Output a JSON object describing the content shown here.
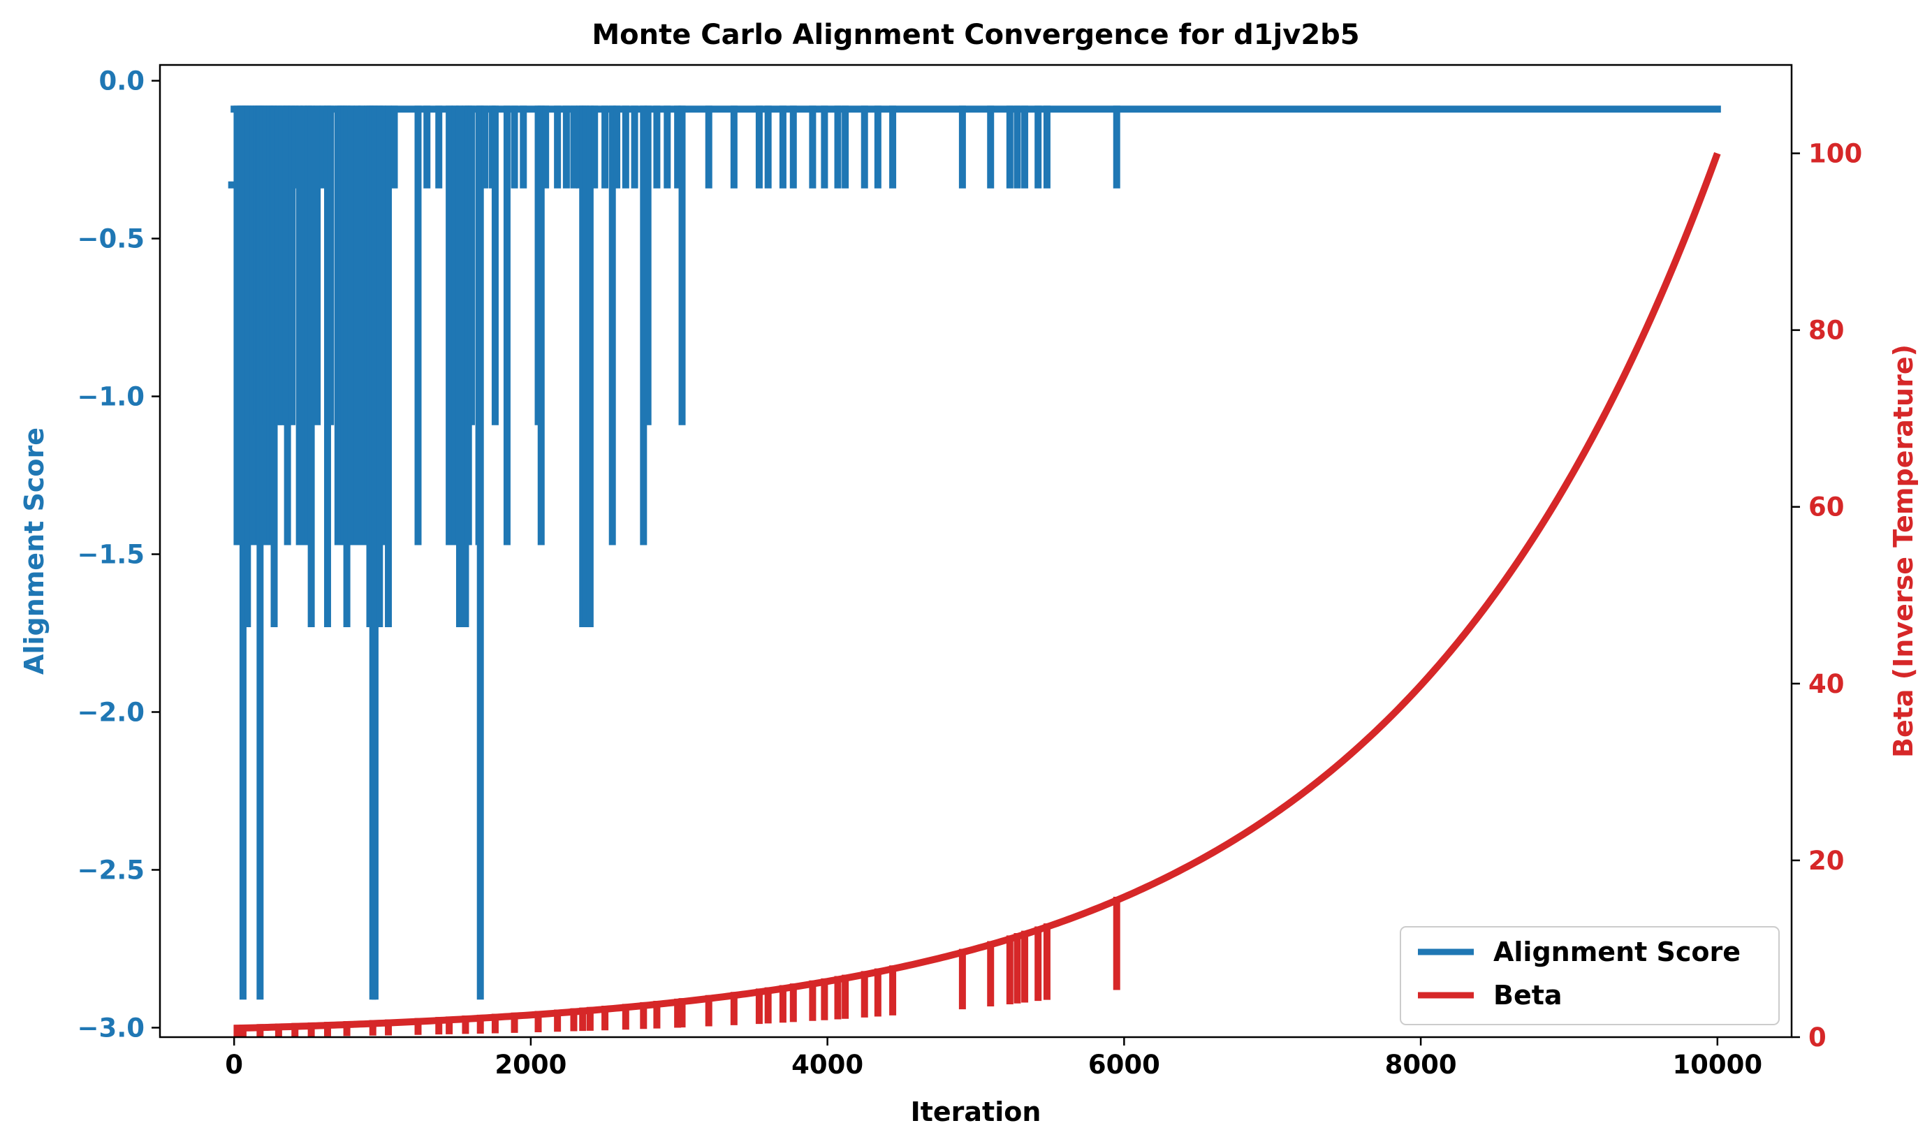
{
  "chart_data": {
    "type": "line",
    "title": "Monte Carlo Alignment Convergence for d1jv2b5",
    "xlabel": "Iteration",
    "ylabel_left": "Alignment Score",
    "ylabel_right": "Beta (Inverse Temperature)",
    "xlim": [
      -500,
      10500
    ],
    "ylim_left": [
      -3.03,
      0.05
    ],
    "ylim_right": [
      0,
      110
    ],
    "xticks": [
      0,
      2000,
      4000,
      6000,
      8000,
      10000
    ],
    "yticks_left": [
      0.0,
      -0.5,
      -1.0,
      -1.5,
      -2.0,
      -2.5,
      -3.0
    ],
    "yticks_left_labels": [
      "0.0",
      "−0.5",
      "−1.0",
      "−1.5",
      "−2.0",
      "−2.5",
      "−3.0"
    ],
    "yticks_right": [
      0,
      20,
      40,
      60,
      80,
      100
    ],
    "grid": false,
    "legend_position": "lower-right",
    "colors": {
      "score": "#1f77b4",
      "beta": "#d62728",
      "axes": "#000000"
    },
    "series": [
      {
        "name": "Alignment Score",
        "axis": "left",
        "color": "#1f77b4",
        "baseline_value": -0.09,
        "baseline_start": 0,
        "baseline_end": 10000,
        "initial_value": -0.33,
        "dips": [
          [
            20,
            -1.46
          ],
          [
            45,
            -1.08
          ],
          [
            60,
            -2.9
          ],
          [
            75,
            -1.46
          ],
          [
            90,
            -1.72
          ],
          [
            110,
            -1.08
          ],
          [
            130,
            -1.46
          ],
          [
            150,
            -1.08
          ],
          [
            165,
            -1.46
          ],
          [
            175,
            -2.9
          ],
          [
            195,
            -1.46
          ],
          [
            215,
            -1.08
          ],
          [
            240,
            -1.46
          ],
          [
            260,
            -1.46
          ],
          [
            270,
            -1.72
          ],
          [
            300,
            -1.08
          ],
          [
            320,
            -1.08
          ],
          [
            350,
            -1.08
          ],
          [
            360,
            -1.46
          ],
          [
            390,
            -1.08
          ],
          [
            410,
            -0.33
          ],
          [
            440,
            -1.46
          ],
          [
            470,
            -1.46
          ],
          [
            500,
            -1.46
          ],
          [
            520,
            -1.72
          ],
          [
            560,
            -1.08
          ],
          [
            600,
            -0.33
          ],
          [
            630,
            -1.72
          ],
          [
            650,
            -1.08
          ],
          [
            700,
            -1.46
          ],
          [
            720,
            -1.46
          ],
          [
            740,
            -1.46
          ],
          [
            760,
            -1.72
          ],
          [
            790,
            -1.46
          ],
          [
            830,
            -1.46
          ],
          [
            860,
            -1.46
          ],
          [
            900,
            -1.46
          ],
          [
            915,
            -1.72
          ],
          [
            935,
            -2.9
          ],
          [
            950,
            -2.9
          ],
          [
            980,
            -1.72
          ],
          [
            1000,
            -1.46
          ],
          [
            1040,
            -1.72
          ],
          [
            1080,
            -0.33
          ],
          [
            1240,
            -1.46
          ],
          [
            1300,
            -0.33
          ],
          [
            1380,
            -0.33
          ],
          [
            1450,
            -1.46
          ],
          [
            1490,
            -1.46
          ],
          [
            1520,
            -1.72
          ],
          [
            1560,
            -1.72
          ],
          [
            1580,
            -1.46
          ],
          [
            1600,
            -1.08
          ],
          [
            1650,
            -1.46
          ],
          [
            1660,
            -2.9
          ],
          [
            1690,
            -0.33
          ],
          [
            1740,
            -0.33
          ],
          [
            1760,
            -1.08
          ],
          [
            1840,
            -1.46
          ],
          [
            1890,
            -0.33
          ],
          [
            1950,
            -0.33
          ],
          [
            2050,
            -1.08
          ],
          [
            2070,
            -1.46
          ],
          [
            2100,
            -0.33
          ],
          [
            2180,
            -0.33
          ],
          [
            2240,
            -0.33
          ],
          [
            2290,
            -0.33
          ],
          [
            2330,
            -0.33
          ],
          [
            2350,
            -1.72
          ],
          [
            2370,
            -1.72
          ],
          [
            2400,
            -1.72
          ],
          [
            2430,
            -0.33
          ],
          [
            2500,
            -0.33
          ],
          [
            2550,
            -1.46
          ],
          [
            2580,
            -0.33
          ],
          [
            2640,
            -0.33
          ],
          [
            2700,
            -0.33
          ],
          [
            2760,
            -1.46
          ],
          [
            2790,
            -1.08
          ],
          [
            2850,
            -0.33
          ],
          [
            2920,
            -0.33
          ],
          [
            2990,
            -0.33
          ],
          [
            3020,
            -1.08
          ],
          [
            3200,
            -0.33
          ],
          [
            3370,
            -0.33
          ],
          [
            3540,
            -0.33
          ],
          [
            3600,
            -0.33
          ],
          [
            3700,
            -0.33
          ],
          [
            3770,
            -0.33
          ],
          [
            3900,
            -0.33
          ],
          [
            3980,
            -0.33
          ],
          [
            4070,
            -0.33
          ],
          [
            4120,
            -0.33
          ],
          [
            4250,
            -0.33
          ],
          [
            4340,
            -0.33
          ],
          [
            4440,
            -0.33
          ],
          [
            4910,
            -0.33
          ],
          [
            5100,
            -0.33
          ],
          [
            5230,
            -0.33
          ],
          [
            5280,
            -0.33
          ],
          [
            5330,
            -0.33
          ],
          [
            5420,
            -0.33
          ],
          [
            5480,
            -0.33
          ],
          [
            5950,
            -0.33
          ]
        ]
      },
      {
        "name": "Beta",
        "axis": "right",
        "color": "#d62728",
        "x_start": 0,
        "x_end": 10000,
        "start_value": 1,
        "end_value": 100,
        "curve": "exponential",
        "dips_at": [
          20,
          60,
          175,
          300,
          410,
          520,
          630,
          760,
          935,
          1040,
          1240,
          1380,
          1450,
          1560,
          1660,
          1760,
          1890,
          2050,
          2180,
          2290,
          2350,
          2400,
          2500,
          2640,
          2760,
          2850,
          2990,
          3020,
          3200,
          3370,
          3540,
          3600,
          3700,
          3770,
          3900,
          3980,
          4070,
          4120,
          4250,
          4340,
          4440,
          4910,
          5100,
          5230,
          5280,
          5330,
          5420,
          5480,
          5950
        ]
      }
    ]
  }
}
